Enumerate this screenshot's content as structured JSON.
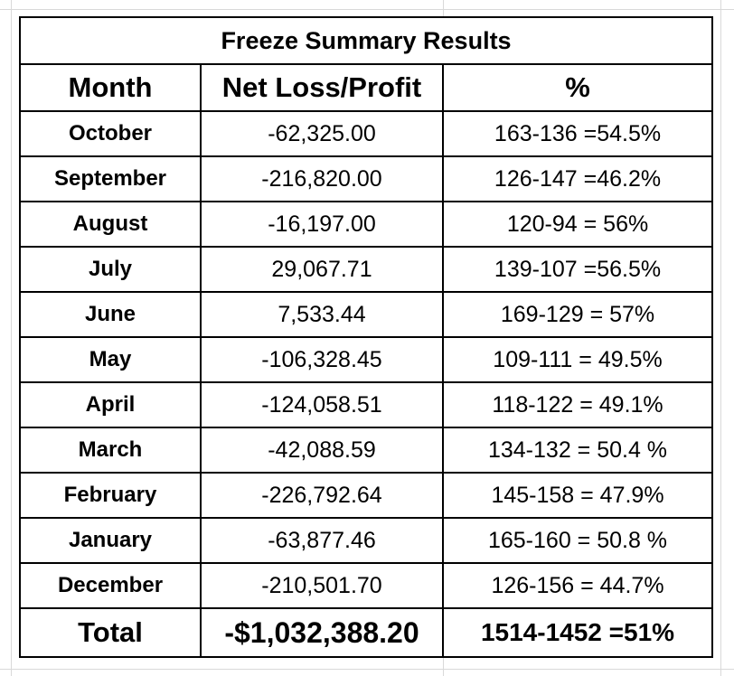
{
  "title": "Freeze Summary Results",
  "headers": {
    "month": "Month",
    "net": "Net Loss/Profit",
    "pct": "%"
  },
  "rows": [
    {
      "month": "October",
      "net": "-62,325.00",
      "pct": "163-136 =54.5%"
    },
    {
      "month": "September",
      "net": "-216,820.00",
      "pct": "126-147 =46.2%"
    },
    {
      "month": "August",
      "net": "-16,197.00",
      "pct": "120-94 = 56%"
    },
    {
      "month": "July",
      "net": "29,067.71",
      "pct": "139-107 =56.5%"
    },
    {
      "month": "June",
      "net": "7,533.44",
      "pct": "169-129 = 57%"
    },
    {
      "month": "May",
      "net": "-106,328.45",
      "pct": "109-111 = 49.5%"
    },
    {
      "month": "April",
      "net": "-124,058.51",
      "pct": "118-122 = 49.1%"
    },
    {
      "month": "March",
      "net": "-42,088.59",
      "pct": "134-132 = 50.4 %"
    },
    {
      "month": "February",
      "net": "-226,792.64",
      "pct": "145-158 = 47.9%"
    },
    {
      "month": "January",
      "net": "-63,877.46",
      "pct": "165-160 = 50.8 %"
    },
    {
      "month": "December",
      "net": "-210,501.70",
      "pct": "126-156 = 44.7%"
    }
  ],
  "total": {
    "label": "Total",
    "net": "-$1,032,388.20",
    "pct": "1514-1452 =51%"
  }
}
